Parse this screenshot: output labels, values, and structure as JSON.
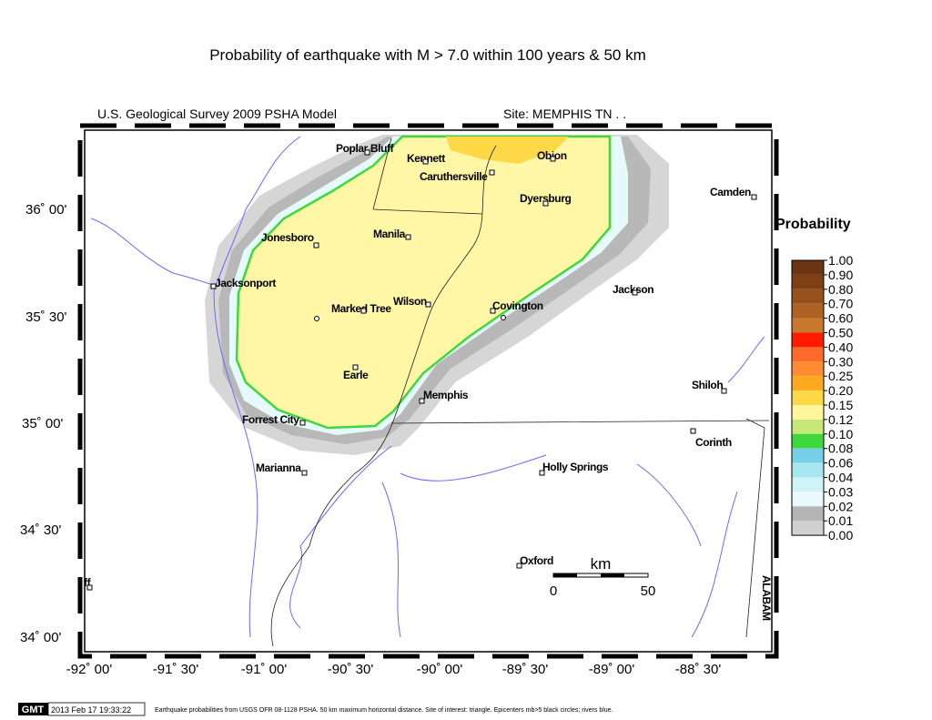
{
  "title": "Probability of earthquake with M > 7.0 within 100 years & 50 km",
  "header": {
    "model": "U.S. Geological Survey 2009 PSHA Model",
    "site": "Site: MEMPHIS  TN . ."
  },
  "cities": [
    "Poplar Bluff",
    "Kennett",
    "Obion",
    "Caruthersville",
    "Dyersburg",
    "Camden",
    "Jonesboro",
    "Manila",
    "Jacksonport",
    "Jackson",
    "Wilson",
    "Marked Tree",
    "Covington",
    "Earle",
    "Memphis",
    "Shiloh",
    "Forrest City",
    "Corinth",
    "Marianna",
    "Holly Springs",
    "Oxford",
    "ff",
    "ALABAM"
  ],
  "lat_labels": [
    "36˚ 00'",
    "35˚ 30'",
    "35˚ 00'",
    "34˚ 30'",
    "34˚ 00'"
  ],
  "lon_labels": [
    "-92˚ 00'",
    "-91˚ 30'",
    "-91˚ 00'",
    "-90˚ 30'",
    "-90˚ 00'",
    "-89˚ 30'",
    "-89˚ 00'",
    "-88˚ 30'"
  ],
  "scale_bar": {
    "unit": "km",
    "start": "0",
    "end": "50"
  },
  "legend": {
    "title": "Probability",
    "labels": [
      "1.00",
      "0.90",
      "0.80",
      "0.70",
      "0.60",
      "0.50",
      "0.40",
      "0.30",
      "0.25",
      "0.20",
      "0.15",
      "0.12",
      "0.10",
      "0.08",
      "0.06",
      "0.04",
      "0.03",
      "0.02",
      "0.01",
      "0.00"
    ],
    "colors": [
      "#6b3412",
      "#7f3f14",
      "#96501c",
      "#ad6224",
      "#c9772c",
      "#ff1a00",
      "#ff6a2a",
      "#ff8c30",
      "#ffa820",
      "#ffd848",
      "#fff59a",
      "#c6e878",
      "#3ed83e",
      "#78d0e8",
      "#a8e6f2",
      "#d0f3f8",
      "#eafafc",
      "#b4b4b4",
      "#d0d0d0"
    ]
  },
  "footer": {
    "badge": "GMT",
    "timestamp": "2013 Feb 17 19:33:22",
    "caption": "Earthquake probabilities from USGS OFR 08-1128 PSHA. 50 km maximum horizontal distance. Site of interest: triangle. Epicenters mb>5 black circles; rivers blue."
  }
}
